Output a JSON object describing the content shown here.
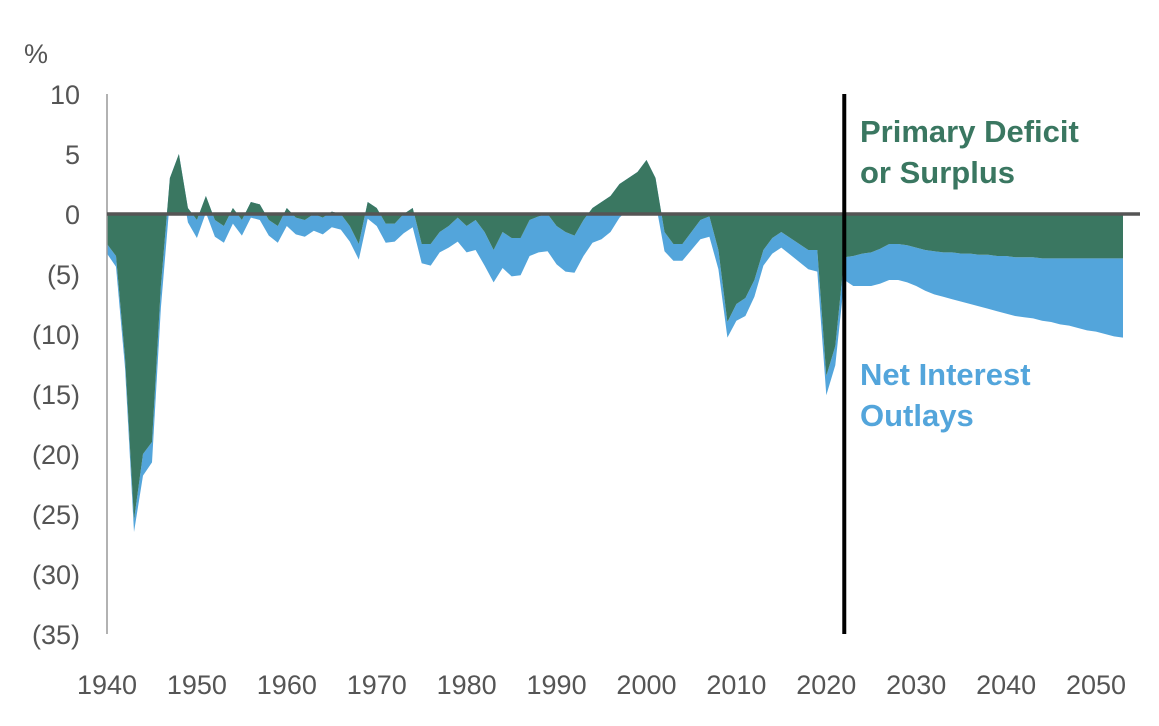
{
  "chart_data": {
    "type": "area",
    "title": "",
    "ylabel": "%",
    "xlabel": "",
    "xlim": [
      1940,
      2053
    ],
    "ylim": [
      -35,
      10
    ],
    "x_ticks": [
      1940,
      1950,
      1960,
      1970,
      1980,
      1990,
      2000,
      2010,
      2020,
      2030,
      2040,
      2050
    ],
    "y_ticks": [
      {
        "value": 10,
        "label": "10"
      },
      {
        "value": 5,
        "label": "5"
      },
      {
        "value": 0,
        "label": "0"
      },
      {
        "value": -5,
        "label": "(5)"
      },
      {
        "value": -10,
        "label": "(10)"
      },
      {
        "value": -15,
        "label": "(15)"
      },
      {
        "value": -20,
        "label": "(20)"
      },
      {
        "value": -25,
        "label": "(25)"
      },
      {
        "value": -30,
        "label": "(30)"
      },
      {
        "value": -35,
        "label": "(35)"
      }
    ],
    "divider_year": 2022,
    "grid": false,
    "colors": {
      "primary": "#3a7761",
      "interest": "#53a5db",
      "zero_line": "#555555",
      "divider": "#000000",
      "axis": "#999999",
      "tick_text": "#555555"
    },
    "series": [
      {
        "name": "Primary Deficit or Surplus",
        "x": [
          1940,
          1941,
          1942,
          1943,
          1944,
          1945,
          1946,
          1947,
          1948,
          1949,
          1950,
          1951,
          1952,
          1953,
          1954,
          1955,
          1956,
          1957,
          1958,
          1959,
          1960,
          1961,
          1962,
          1963,
          1964,
          1965,
          1966,
          1967,
          1968,
          1969,
          1970,
          1971,
          1972,
          1973,
          1974,
          1975,
          1976,
          1977,
          1978,
          1979,
          1980,
          1981,
          1982,
          1983,
          1984,
          1985,
          1986,
          1987,
          1988,
          1989,
          1990,
          1991,
          1992,
          1993,
          1994,
          1995,
          1996,
          1997,
          1998,
          1999,
          2000,
          2001,
          2002,
          2003,
          2004,
          2005,
          2006,
          2007,
          2008,
          2009,
          2010,
          2011,
          2012,
          2013,
          2014,
          2015,
          2016,
          2017,
          2018,
          2019,
          2020,
          2021,
          2022,
          2023,
          2024,
          2025,
          2026,
          2027,
          2028,
          2029,
          2030,
          2031,
          2032,
          2033,
          2034,
          2035,
          2036,
          2037,
          2038,
          2039,
          2040,
          2041,
          2042,
          2043,
          2044,
          2045,
          2046,
          2047,
          2048,
          2049,
          2050,
          2051,
          2052,
          2053
        ],
        "values": [
          -2.5,
          -3.5,
          -12.0,
          -25.5,
          -20.0,
          -19.0,
          -6.0,
          3.0,
          5.0,
          0.5,
          -0.5,
          1.5,
          -0.5,
          -1.0,
          0.5,
          -0.5,
          1.0,
          0.8,
          -0.5,
          -1.0,
          0.5,
          -0.3,
          -0.5,
          0.0,
          -0.3,
          0.2,
          0.0,
          -1.0,
          -2.5,
          1.0,
          0.5,
          -0.8,
          -0.8,
          0.0,
          0.5,
          -2.5,
          -2.5,
          -1.5,
          -1.0,
          -0.3,
          -1.0,
          -0.5,
          -1.5,
          -3.0,
          -1.5,
          -2.0,
          -2.0,
          -0.5,
          -0.2,
          0.0,
          -1.0,
          -1.5,
          -1.8,
          -0.5,
          0.5,
          1.0,
          1.5,
          2.5,
          3.0,
          3.5,
          4.5,
          3.0,
          -1.5,
          -2.5,
          -2.5,
          -1.5,
          -0.5,
          -0.2,
          -3.0,
          -9.0,
          -7.5,
          -7.0,
          -5.5,
          -3.0,
          -2.0,
          -1.5,
          -2.0,
          -2.5,
          -3.0,
          -3.0,
          -13.5,
          -11.0,
          -3.6,
          -3.5,
          -3.3,
          -3.2,
          -2.9,
          -2.5,
          -2.5,
          -2.6,
          -2.8,
          -3.0,
          -3.1,
          -3.2,
          -3.2,
          -3.3,
          -3.3,
          -3.4,
          -3.4,
          -3.5,
          -3.5,
          -3.6,
          -3.6,
          -3.6,
          -3.7,
          -3.7,
          -3.7,
          -3.7,
          -3.7,
          -3.7,
          -3.7,
          -3.7,
          -3.7,
          -3.7
        ]
      },
      {
        "name": "Net Interest Outlays",
        "x": [
          1940,
          1941,
          1942,
          1943,
          1944,
          1945,
          1946,
          1947,
          1948,
          1949,
          1950,
          1951,
          1952,
          1953,
          1954,
          1955,
          1956,
          1957,
          1958,
          1959,
          1960,
          1961,
          1962,
          1963,
          1964,
          1965,
          1966,
          1967,
          1968,
          1969,
          1970,
          1971,
          1972,
          1973,
          1974,
          1975,
          1976,
          1977,
          1978,
          1979,
          1980,
          1981,
          1982,
          1983,
          1984,
          1985,
          1986,
          1987,
          1988,
          1989,
          1990,
          1991,
          1992,
          1993,
          1994,
          1995,
          1996,
          1997,
          1998,
          1999,
          2000,
          2001,
          2002,
          2003,
          2004,
          2005,
          2006,
          2007,
          2008,
          2009,
          2010,
          2011,
          2012,
          2013,
          2014,
          2015,
          2016,
          2017,
          2018,
          2019,
          2020,
          2021,
          2022,
          2023,
          2024,
          2025,
          2026,
          2027,
          2028,
          2029,
          2030,
          2031,
          2032,
          2033,
          2034,
          2035,
          2036,
          2037,
          2038,
          2039,
          2040,
          2041,
          2042,
          2043,
          2044,
          2045,
          2046,
          2047,
          2048,
          2049,
          2050,
          2051,
          2052,
          2053
        ],
        "values": [
          -0.8,
          -0.9,
          -0.8,
          -1.0,
          -1.8,
          -1.7,
          -1.8,
          -1.8,
          -1.2,
          -1.2,
          -1.5,
          -1.4,
          -1.4,
          -1.4,
          -1.3,
          -1.3,
          -1.3,
          -1.3,
          -1.3,
          -1.4,
          -1.5,
          -1.4,
          -1.4,
          -1.4,
          -1.4,
          -1.3,
          -1.3,
          -1.3,
          -1.3,
          -1.4,
          -1.5,
          -1.6,
          -1.5,
          -1.6,
          -1.6,
          -1.6,
          -1.8,
          -1.7,
          -1.8,
          -2.0,
          -2.2,
          -2.5,
          -2.8,
          -2.7,
          -3.0,
          -3.2,
          -3.1,
          -3.0,
          -3.0,
          -3.1,
          -3.2,
          -3.3,
          -3.1,
          -3.0,
          -2.9,
          -3.1,
          -3.0,
          -2.8,
          -2.6,
          -2.4,
          -2.3,
          -2.0,
          -1.6,
          -1.4,
          -1.4,
          -1.5,
          -1.6,
          -1.7,
          -1.6,
          -1.3,
          -1.4,
          -1.5,
          -1.4,
          -1.3,
          -1.3,
          -1.3,
          -1.4,
          -1.5,
          -1.6,
          -1.8,
          -1.6,
          -1.6,
          -1.9,
          -2.5,
          -2.7,
          -2.8,
          -2.9,
          -3.0,
          -3.0,
          -3.1,
          -3.2,
          -3.4,
          -3.6,
          -3.7,
          -3.9,
          -4.0,
          -4.2,
          -4.3,
          -4.5,
          -4.6,
          -4.8,
          -4.9,
          -5.0,
          -5.1,
          -5.2,
          -5.3,
          -5.5,
          -5.6,
          -5.8,
          -6.0,
          -6.1,
          -6.3,
          -6.5,
          -6.6
        ]
      }
    ],
    "annotations": [
      {
        "series": "Primary Deficit or Surplus",
        "lines": [
          "Primary Deficit",
          "or Surplus"
        ],
        "color": "#3a7761"
      },
      {
        "series": "Net Interest Outlays",
        "lines": [
          "Net Interest",
          "Outlays"
        ],
        "color": "#53a5db"
      }
    ]
  }
}
